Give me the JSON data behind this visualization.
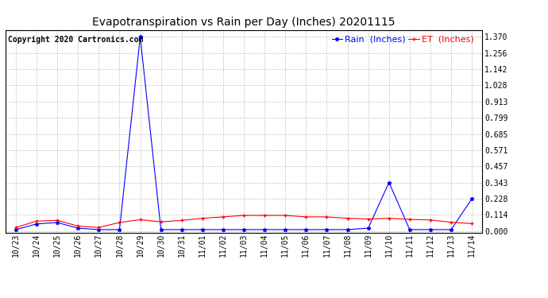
{
  "title": "Evapotranspiration vs Rain per Day (Inches) 20201115",
  "copyright": "Copyright 2020 Cartronics.com",
  "legend_rain": "Rain  (Inches)",
  "legend_et": "ET  (Inches)",
  "x_labels": [
    "10/23",
    "10/24",
    "10/25",
    "10/26",
    "10/27",
    "10/28",
    "10/29",
    "10/30",
    "10/31",
    "11/01",
    "11/02",
    "11/03",
    "11/04",
    "11/05",
    "11/06",
    "11/07",
    "11/08",
    "11/09",
    "11/10",
    "11/11",
    "11/12",
    "11/13",
    "11/14"
  ],
  "rain": [
    0.01,
    0.05,
    0.06,
    0.02,
    0.01,
    0.01,
    1.37,
    0.01,
    0.01,
    0.01,
    0.01,
    0.01,
    0.01,
    0.01,
    0.01,
    0.01,
    0.01,
    0.02,
    0.343,
    0.01,
    0.01,
    0.01,
    0.228
  ],
  "et": [
    0.025,
    0.07,
    0.075,
    0.035,
    0.025,
    0.06,
    0.08,
    0.065,
    0.075,
    0.09,
    0.1,
    0.11,
    0.11,
    0.11,
    0.1,
    0.1,
    0.09,
    0.085,
    0.09,
    0.082,
    0.078,
    0.062,
    0.052
  ],
  "rain_color": "blue",
  "et_color": "red",
  "yticks": [
    0.0,
    0.114,
    0.228,
    0.343,
    0.457,
    0.571,
    0.685,
    0.799,
    0.913,
    1.028,
    1.142,
    1.256,
    1.37
  ],
  "ylim": [
    -0.01,
    1.42
  ],
  "bg_color": "#ffffff",
  "grid_color": "#bbbbbb",
  "title_fontsize": 10,
  "copyright_fontsize": 7,
  "legend_fontsize": 8,
  "tick_fontsize": 7
}
